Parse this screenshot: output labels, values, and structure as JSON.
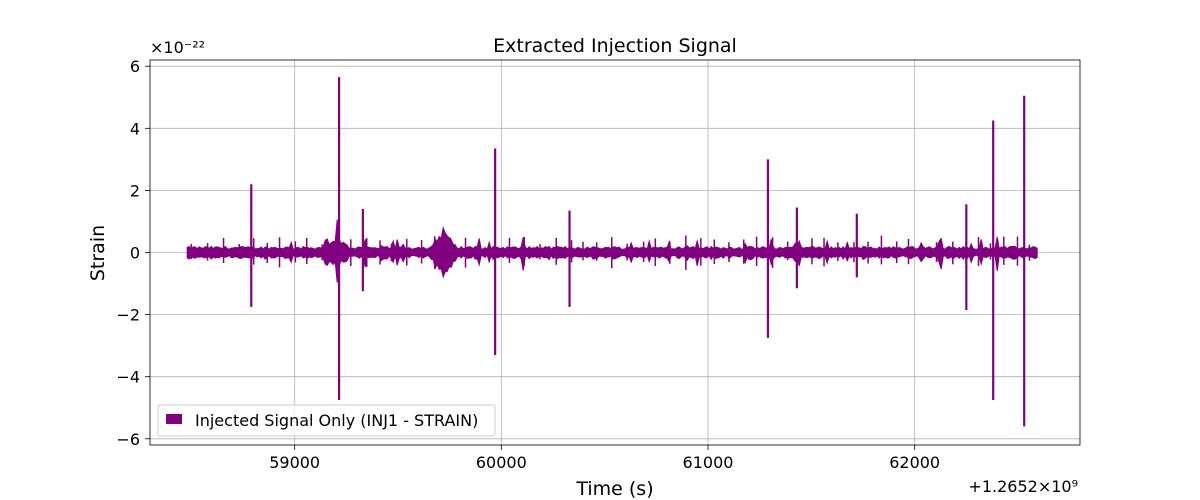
{
  "chart_data": {
    "type": "line",
    "title": "Extracted Injection Signal",
    "xlabel": "Time (s)",
    "ylabel": "Strain",
    "x_offset_label": "+1.2652×10⁹",
    "y_scale_label": "×10⁻²²",
    "xlim": [
      58300,
      62800
    ],
    "ylim": [
      -6.2,
      6.2
    ],
    "x_ticks": [
      59000,
      60000,
      61000,
      62000
    ],
    "x_tick_labels": [
      "59000",
      "60000",
      "61000",
      "62000"
    ],
    "y_ticks": [
      -6,
      -4,
      -2,
      0,
      2,
      4,
      6
    ],
    "y_tick_labels": [
      "−6",
      "−4",
      "−2",
      "0",
      "2",
      "4",
      "6"
    ],
    "grid": true,
    "legend_position": "lower-left",
    "series": [
      {
        "name": "Injected Signal Only (INJ1 - STRAIN)",
        "color": "#800080",
        "x_range": [
          58480,
          62600
        ],
        "baseline_amplitude": 0.15,
        "spikes": [
          {
            "x": 58790,
            "y_max": 2.2,
            "y_min": -1.75
          },
          {
            "x": 59215,
            "y_max": 5.65,
            "y_min": -4.75
          },
          {
            "x": 59330,
            "y_max": 1.4,
            "y_min": -1.25
          },
          {
            "x": 59970,
            "y_max": 3.35,
            "y_min": -3.3
          },
          {
            "x": 60330,
            "y_max": 1.35,
            "y_min": -1.75
          },
          {
            "x": 61290,
            "y_max": 3.0,
            "y_min": -2.75
          },
          {
            "x": 61430,
            "y_max": 1.45,
            "y_min": -1.15
          },
          {
            "x": 61720,
            "y_max": 1.25,
            "y_min": -0.8
          },
          {
            "x": 62250,
            "y_max": 1.55,
            "y_min": -1.85
          },
          {
            "x": 62380,
            "y_max": 4.25,
            "y_min": -4.75
          },
          {
            "x": 62530,
            "y_max": 5.05,
            "y_min": -5.6
          }
        ],
        "bursts": [
          {
            "x": 59720,
            "amplitude": 0.85
          },
          {
            "x": 59210,
            "amplitude": 0.5
          }
        ]
      }
    ]
  }
}
